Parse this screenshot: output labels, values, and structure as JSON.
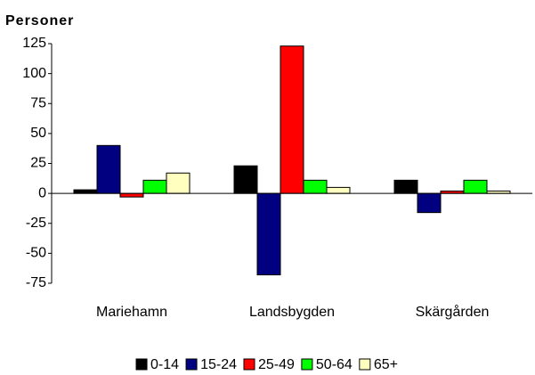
{
  "chart_data": {
    "type": "bar",
    "y_label": "Personer",
    "categories": [
      "Mariehamn",
      "Landsbygden",
      "Skärgården"
    ],
    "series": [
      {
        "name": "0-14",
        "color": "#000000",
        "values": [
          3,
          23,
          11
        ]
      },
      {
        "name": "15-24",
        "color": "#000080",
        "values": [
          40,
          -68,
          -16
        ]
      },
      {
        "name": "25-49",
        "color": "#ff0000",
        "values": [
          -3,
          123,
          2
        ]
      },
      {
        "name": "50-64",
        "color": "#00ff00",
        "values": [
          11,
          11,
          11
        ]
      },
      {
        "name": "65+",
        "color": "#ffffc0",
        "values": [
          17,
          5,
          2
        ]
      }
    ],
    "ylim": [
      -75,
      125
    ],
    "yticks": [
      -75,
      -50,
      -25,
      0,
      25,
      50,
      75,
      100,
      125
    ],
    "grid": false,
    "legend": "bottom"
  }
}
